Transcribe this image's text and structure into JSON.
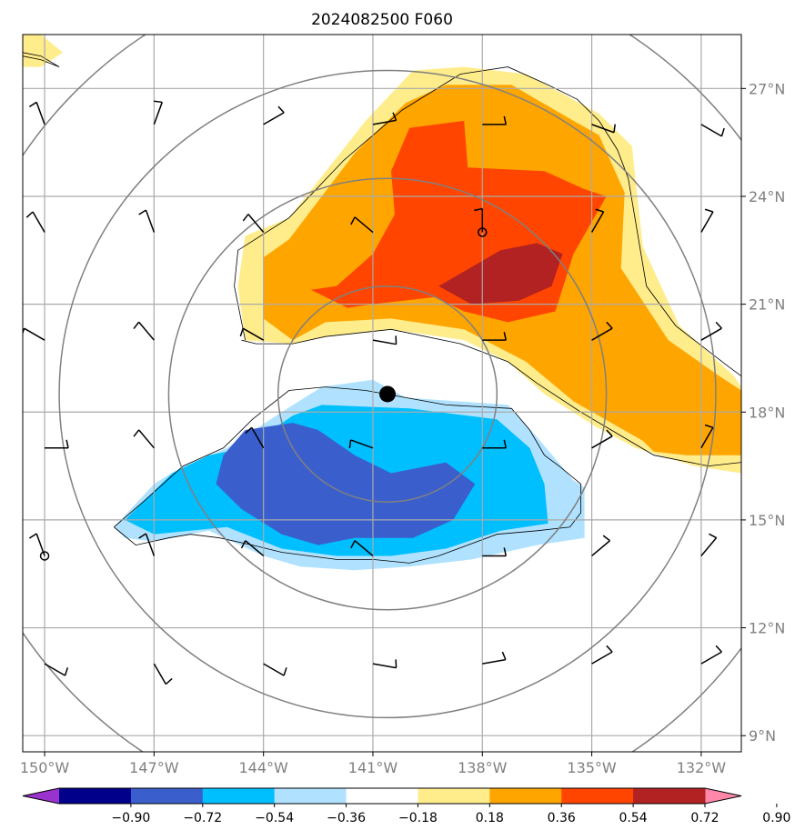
{
  "chart_data": {
    "type": "heatmap",
    "title": "2024082500 F060",
    "xlabel": "",
    "ylabel": "",
    "xlim": [
      -150.6,
      -130.9
    ],
    "ylim": [
      8.55,
      28.5
    ],
    "x_ticks": [
      -150,
      -147,
      -144,
      -141,
      -138,
      -135,
      -132
    ],
    "x_tick_labels": [
      "150°W",
      "147°W",
      "144°W",
      "141°W",
      "138°W",
      "135°W",
      "132°W"
    ],
    "y_ticks": [
      9,
      12,
      15,
      18,
      21,
      24,
      27
    ],
    "y_tick_labels": [
      "9°N",
      "12°N",
      "15°N",
      "18°N",
      "21°N",
      "24°N",
      "27°N"
    ],
    "grid": true,
    "storm_center": {
      "lon": -140.6,
      "lat": 18.5
    },
    "range_rings_deg": [
      3,
      6,
      9,
      12
    ],
    "colorbar": {
      "orientation": "horizontal",
      "placement": "bottom",
      "extend": "both",
      "levels": [
        -0.9,
        -0.72,
        -0.54,
        -0.36,
        -0.18,
        0.18,
        0.36,
        0.54,
        0.72,
        0.9
      ],
      "tick_labels": [
        "−0.90",
        "−0.72",
        "−0.54",
        "−0.36",
        "−0.18",
        "0.18",
        "0.36",
        "0.54",
        "0.72",
        "0.90"
      ],
      "colors": [
        "#9a32cd",
        "#00008b",
        "#3a5fcd",
        "#00bfff",
        "#b0e2ff",
        "#ffffff",
        "#ffec8b",
        "#ffa500",
        "#ff4500",
        "#b22222",
        "#ff88aa"
      ]
    },
    "filled_regions": [
      {
        "level": 0.18,
        "color": "#ffec8b",
        "points": [
          [
            -144.5,
            22.9
          ],
          [
            -143.3,
            23.4
          ],
          [
            -141.2,
            26.1
          ],
          [
            -139.9,
            27.5
          ],
          [
            -138.5,
            27.6
          ],
          [
            -136.8,
            27.4
          ],
          [
            -135.7,
            26.8
          ],
          [
            -134.8,
            26.3
          ],
          [
            -133.9,
            25.4
          ],
          [
            -133.6,
            22.6
          ],
          [
            -132.6,
            20.4
          ],
          [
            -131.1,
            19.0
          ],
          [
            -130.9,
            18.7
          ],
          [
            -130.9,
            16.3
          ],
          [
            -132.2,
            16.5
          ],
          [
            -133.8,
            17.0
          ],
          [
            -134.9,
            17.6
          ],
          [
            -136.3,
            18.5
          ],
          [
            -137.3,
            19.4
          ],
          [
            -138.5,
            20.0
          ],
          [
            -140.5,
            20.3
          ],
          [
            -142.3,
            20.1
          ],
          [
            -143.2,
            19.9
          ],
          [
            -144.5,
            20.0
          ],
          [
            -144.7,
            21.5
          ]
        ]
      },
      {
        "level": 0.18,
        "color": "#ffec8b",
        "points": [
          [
            -150.6,
            28.5
          ],
          [
            -150.1,
            28.5
          ],
          [
            -149.5,
            28.0
          ],
          [
            -150.1,
            27.6
          ],
          [
            -150.6,
            27.6
          ]
        ]
      },
      {
        "level": 0.36,
        "color": "#ffa500",
        "points": [
          [
            -144.0,
            22.3
          ],
          [
            -143.3,
            22.8
          ],
          [
            -141.5,
            25.2
          ],
          [
            -140.1,
            26.6
          ],
          [
            -139.0,
            27.1
          ],
          [
            -137.2,
            27.1
          ],
          [
            -135.5,
            26.1
          ],
          [
            -134.8,
            25.7
          ],
          [
            -134.1,
            24.1
          ],
          [
            -134.2,
            22.0
          ],
          [
            -132.9,
            20.0
          ],
          [
            -131.5,
            19.0
          ],
          [
            -130.9,
            18.6
          ],
          [
            -130.9,
            16.8
          ],
          [
            -132.4,
            16.8
          ],
          [
            -133.3,
            16.9
          ],
          [
            -133.6,
            17.2
          ],
          [
            -135.5,
            18.3
          ],
          [
            -136.8,
            19.4
          ],
          [
            -138.5,
            20.3
          ],
          [
            -140.5,
            20.6
          ],
          [
            -142.3,
            20.5
          ],
          [
            -143.2,
            20.0
          ],
          [
            -144.0,
            20.6
          ]
        ]
      },
      {
        "level": 0.54,
        "color": "#ff4500",
        "points": [
          [
            -142.0,
            21.5
          ],
          [
            -141.0,
            22.4
          ],
          [
            -140.4,
            23.5
          ],
          [
            -140.5,
            24.7
          ],
          [
            -140.0,
            25.9
          ],
          [
            -138.5,
            26.1
          ],
          [
            -138.4,
            24.8
          ],
          [
            -136.3,
            24.7
          ],
          [
            -135.2,
            24.2
          ],
          [
            -134.6,
            24.0
          ],
          [
            -135.5,
            22.4
          ],
          [
            -136.0,
            20.8
          ],
          [
            -137.3,
            20.5
          ],
          [
            -138.5,
            20.8
          ],
          [
            -139.3,
            21.2
          ],
          [
            -141.0,
            21.0
          ],
          [
            -141.7,
            20.9
          ],
          [
            -142.7,
            21.4
          ]
        ]
      },
      {
        "level": 0.72,
        "color": "#b22222",
        "points": [
          [
            -139.2,
            21.5
          ],
          [
            -137.5,
            22.5
          ],
          [
            -136.5,
            22.7
          ],
          [
            -135.8,
            22.4
          ],
          [
            -136.1,
            21.5
          ],
          [
            -137.0,
            21.1
          ],
          [
            -138.3,
            21.0
          ]
        ]
      },
      {
        "level": -0.18,
        "color": "#b0e2ff",
        "points": [
          [
            -148.1,
            14.8
          ],
          [
            -147.0,
            16.0
          ],
          [
            -146.2,
            16.5
          ],
          [
            -145.0,
            17.0
          ],
          [
            -143.5,
            18.0
          ],
          [
            -142.4,
            18.7
          ],
          [
            -141.0,
            18.9
          ],
          [
            -140.1,
            18.4
          ],
          [
            -137.3,
            18.2
          ],
          [
            -136.5,
            17.3
          ],
          [
            -135.5,
            16.1
          ],
          [
            -135.2,
            15.9
          ],
          [
            -135.2,
            14.5
          ],
          [
            -136.5,
            14.3
          ],
          [
            -138.3,
            13.9
          ],
          [
            -140.0,
            13.7
          ],
          [
            -141.5,
            13.6
          ],
          [
            -143.0,
            13.7
          ],
          [
            -144.0,
            14.0
          ],
          [
            -145.5,
            14.7
          ],
          [
            -147.0,
            14.4
          ],
          [
            -147.8,
            14.5
          ]
        ]
      },
      {
        "level": -0.36,
        "color": "#00bfff",
        "points": [
          [
            -147.8,
            15.0
          ],
          [
            -146.5,
            16.3
          ],
          [
            -145.5,
            16.8
          ],
          [
            -144.5,
            17.0
          ],
          [
            -143.2,
            17.9
          ],
          [
            -142.4,
            18.2
          ],
          [
            -140.0,
            18.1
          ],
          [
            -137.6,
            17.8
          ],
          [
            -136.7,
            17.0
          ],
          [
            -136.3,
            16.0
          ],
          [
            -136.2,
            14.9
          ],
          [
            -137.5,
            14.7
          ],
          [
            -139.0,
            14.2
          ],
          [
            -140.5,
            14.0
          ],
          [
            -142.0,
            14.0
          ],
          [
            -143.5,
            14.2
          ],
          [
            -145.0,
            14.8
          ],
          [
            -146.0,
            14.7
          ],
          [
            -147.0,
            14.6
          ]
        ]
      },
      {
        "level": -0.54,
        "color": "#3a5fcd",
        "points": [
          [
            -145.1,
            16.8
          ],
          [
            -144.5,
            17.5
          ],
          [
            -143.2,
            17.7
          ],
          [
            -142.5,
            17.5
          ],
          [
            -141.5,
            16.8
          ],
          [
            -140.5,
            16.3
          ],
          [
            -139.0,
            16.6
          ],
          [
            -138.2,
            16.0
          ],
          [
            -138.8,
            15.0
          ],
          [
            -139.9,
            14.5
          ],
          [
            -141.5,
            14.5
          ],
          [
            -142.5,
            14.3
          ],
          [
            -143.5,
            14.6
          ],
          [
            -144.6,
            15.3
          ],
          [
            -145.3,
            16.0
          ]
        ]
      }
    ],
    "markers": [
      {
        "lon": -140.6,
        "lat": 18.5,
        "style": "filled-dot"
      },
      {
        "lon": -138.0,
        "lat": 23.0,
        "style": "open-circle"
      },
      {
        "lon": -150.0,
        "lat": 14.0,
        "style": "open-circle"
      }
    ],
    "wind_barbs": {
      "lons": [
        -150,
        -147,
        -144,
        -141,
        -138,
        -135,
        -132
      ],
      "lats": [
        11,
        14,
        17,
        20,
        23,
        26
      ],
      "directions_deg": [
        [
          120,
          150,
          120,
          100,
          80,
          60,
          60
        ],
        [
          340,
          340,
          310,
          310,
          90,
          50,
          40
        ],
        [
          90,
          320,
          330,
          290,
          90,
          60,
          30
        ],
        [
          300,
          320,
          300,
          100,
          90,
          60,
          60
        ],
        [
          330,
          340,
          320,
          310,
          0,
          30,
          30
        ],
        [
          340,
          20,
          60,
          80,
          90,
          110,
          120
        ]
      ]
    },
    "contour_lines": [
      {
        "points": [
          [
            -144.5,
            20.0
          ],
          [
            -144.8,
            21.5
          ],
          [
            -144.7,
            22.5
          ],
          [
            -143.3,
            23.4
          ],
          [
            -141.8,
            25.0
          ],
          [
            -140.2,
            26.4
          ],
          [
            -138.6,
            27.4
          ],
          [
            -137.3,
            27.6
          ],
          [
            -136.2,
            27.1
          ],
          [
            -135.4,
            26.7
          ],
          [
            -134.8,
            26.1
          ],
          [
            -134.3,
            25.3
          ],
          [
            -134.0,
            24.5
          ],
          [
            -133.7,
            22.7
          ],
          [
            -133.5,
            21.5
          ],
          [
            -132.7,
            20.4
          ],
          [
            -131.3,
            19.3
          ],
          [
            -130.9,
            19.0
          ]
        ]
      },
      {
        "points": [
          [
            -130.9,
            16.6
          ],
          [
            -131.8,
            16.5
          ],
          [
            -133.3,
            16.8
          ],
          [
            -134.3,
            17.4
          ],
          [
            -135.3,
            18.0
          ],
          [
            -136.5,
            18.8
          ],
          [
            -137.3,
            19.4
          ],
          [
            -138.6,
            19.9
          ],
          [
            -140.5,
            20.3
          ],
          [
            -142.3,
            20.1
          ],
          [
            -143.2,
            19.9
          ],
          [
            -144.2,
            19.9
          ],
          [
            -144.6,
            20.0
          ]
        ]
      },
      {
        "points": [
          [
            -148.1,
            14.8
          ],
          [
            -147.3,
            15.5
          ],
          [
            -146.2,
            16.5
          ],
          [
            -145.1,
            17.0
          ],
          [
            -144.3,
            17.8
          ],
          [
            -143.3,
            18.6
          ],
          [
            -142.3,
            18.7
          ],
          [
            -141.2,
            18.6
          ],
          [
            -140.1,
            18.4
          ],
          [
            -139.0,
            18.2
          ],
          [
            -137.2,
            18.1
          ],
          [
            -136.7,
            17.5
          ],
          [
            -136.3,
            16.8
          ],
          [
            -135.9,
            16.5
          ],
          [
            -135.3,
            16.0
          ],
          [
            -135.3,
            15.2
          ],
          [
            -135.6,
            14.8
          ],
          [
            -136.5,
            14.7
          ],
          [
            -137.6,
            14.6
          ],
          [
            -138.4,
            14.3
          ],
          [
            -139.2,
            14.0
          ],
          [
            -140.0,
            13.8
          ],
          [
            -141.0,
            13.9
          ],
          [
            -142.0,
            13.9
          ],
          [
            -143.5,
            14.1
          ],
          [
            -144.3,
            14.3
          ],
          [
            -145.2,
            14.5
          ],
          [
            -146.0,
            14.6
          ],
          [
            -146.6,
            14.5
          ],
          [
            -147.5,
            14.3
          ],
          [
            -148.1,
            14.8
          ]
        ]
      },
      {
        "points": [
          [
            -150.6,
            28.0
          ],
          [
            -150.1,
            27.9
          ],
          [
            -149.6,
            27.6
          ],
          [
            -150.1,
            27.8
          ],
          [
            -150.6,
            27.9
          ]
        ]
      }
    ]
  }
}
